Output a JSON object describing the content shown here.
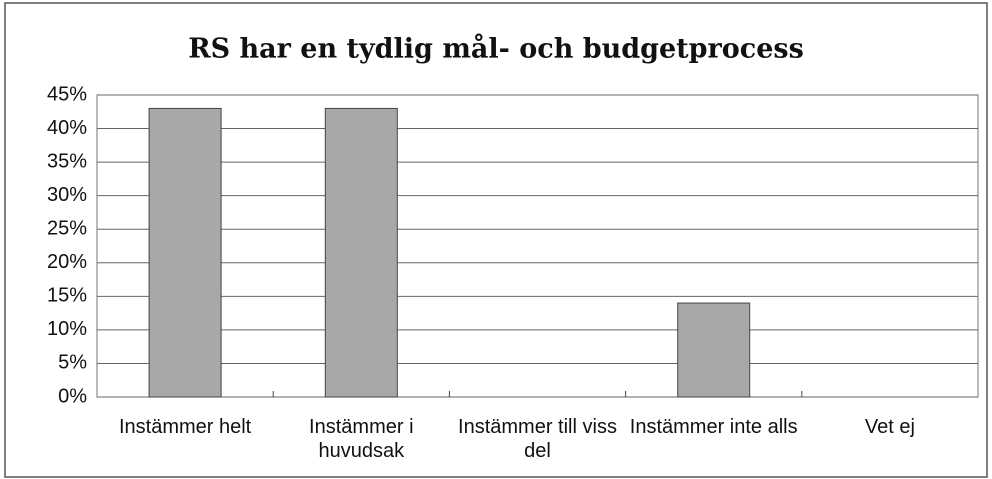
{
  "chart_data": {
    "type": "bar",
    "title": "RS har en tydlig mål- och budgetprocess",
    "categories": [
      "Instämmer helt",
      "Instämmer i huvudsak",
      "Instämmer till viss del",
      "Instämmer inte alls",
      "Vet ej"
    ],
    "values": [
      43,
      43,
      0,
      14,
      0
    ],
    "color": "#a8a8a8",
    "ylim": [
      0,
      45
    ],
    "yticks": [
      {
        "value": 0,
        "label": "0%"
      },
      {
        "value": 5,
        "label": "5%"
      },
      {
        "value": 10,
        "label": "10%"
      },
      {
        "value": 15,
        "label": "15%"
      },
      {
        "value": 20,
        "label": "20%"
      },
      {
        "value": 25,
        "label": "25%"
      },
      {
        "value": 30,
        "label": "30%"
      },
      {
        "value": 35,
        "label": "35%"
      },
      {
        "value": 40,
        "label": "40%"
      },
      {
        "value": 45,
        "label": "45%"
      }
    ],
    "grid": true
  }
}
